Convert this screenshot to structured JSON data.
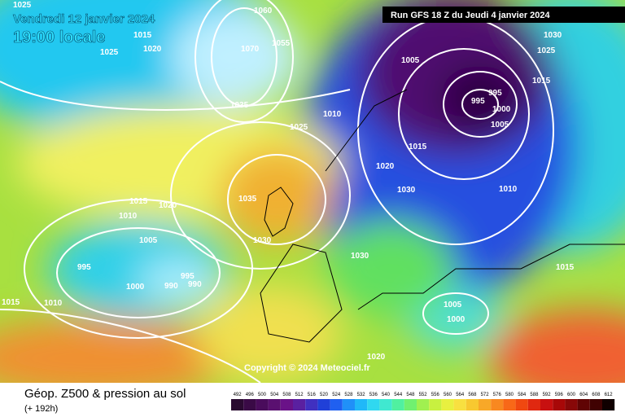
{
  "header": {
    "date": "Vendredi 12 janvier 2024",
    "time": "19:00 locale",
    "run": "Run GFS 18 Z du Jeudi 4 janvier 2024"
  },
  "copyright": "Copyright © 2024 Meteociel.fr",
  "legend": {
    "title": "Géop. Z500 & pression au sol",
    "lead_time": "(+ 192h)",
    "scale": [
      492,
      496,
      500,
      504,
      508,
      512,
      516,
      520,
      524,
      528,
      532,
      536,
      540,
      544,
      548,
      552,
      556,
      560,
      564,
      568,
      572,
      576,
      580,
      584,
      588,
      592,
      596,
      600,
      604,
      608,
      612
    ]
  },
  "isobar_labels": [
    1025,
    1060,
    1015,
    1020,
    1025,
    1070,
    1055,
    1035,
    1025,
    1010,
    1005,
    995,
    995,
    1000,
    1005,
    1030,
    1025,
    1015,
    1015,
    1020,
    1030,
    1010,
    1035,
    1015,
    1020,
    1010,
    1005,
    1030,
    1030,
    995,
    995,
    990,
    990,
    1000,
    1015,
    1010,
    1005,
    1000,
    1015,
    1020
  ]
}
